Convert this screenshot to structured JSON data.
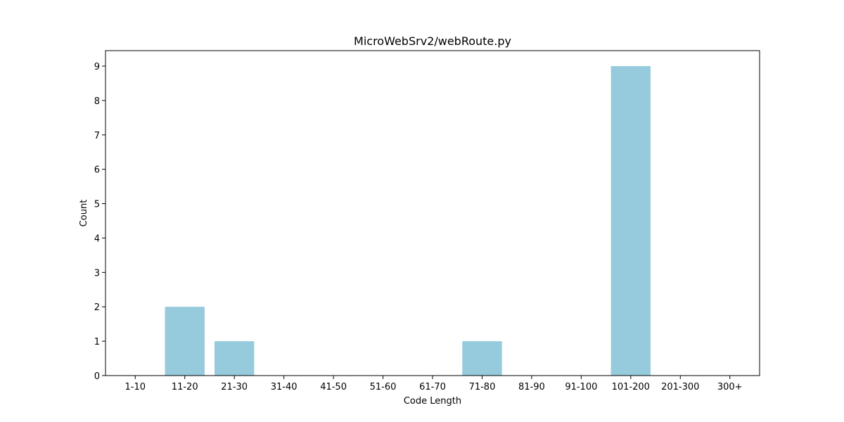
{
  "chart_data": {
    "type": "bar",
    "title": "MicroWebSrv2/webRoute.py",
    "xlabel": "Code Length",
    "ylabel": "Count",
    "categories": [
      "1-10",
      "11-20",
      "21-30",
      "31-40",
      "41-50",
      "51-60",
      "61-70",
      "71-80",
      "81-90",
      "91-100",
      "101-200",
      "201-300",
      "300+"
    ],
    "values": [
      0,
      2,
      1,
      0,
      0,
      0,
      0,
      1,
      0,
      0,
      9,
      0,
      0
    ],
    "ylim": [
      0,
      9.45
    ],
    "yticks": [
      0,
      1,
      2,
      3,
      4,
      5,
      6,
      7,
      8,
      9
    ],
    "bar_color": "#96cadd",
    "grid": false,
    "legend": "none"
  }
}
